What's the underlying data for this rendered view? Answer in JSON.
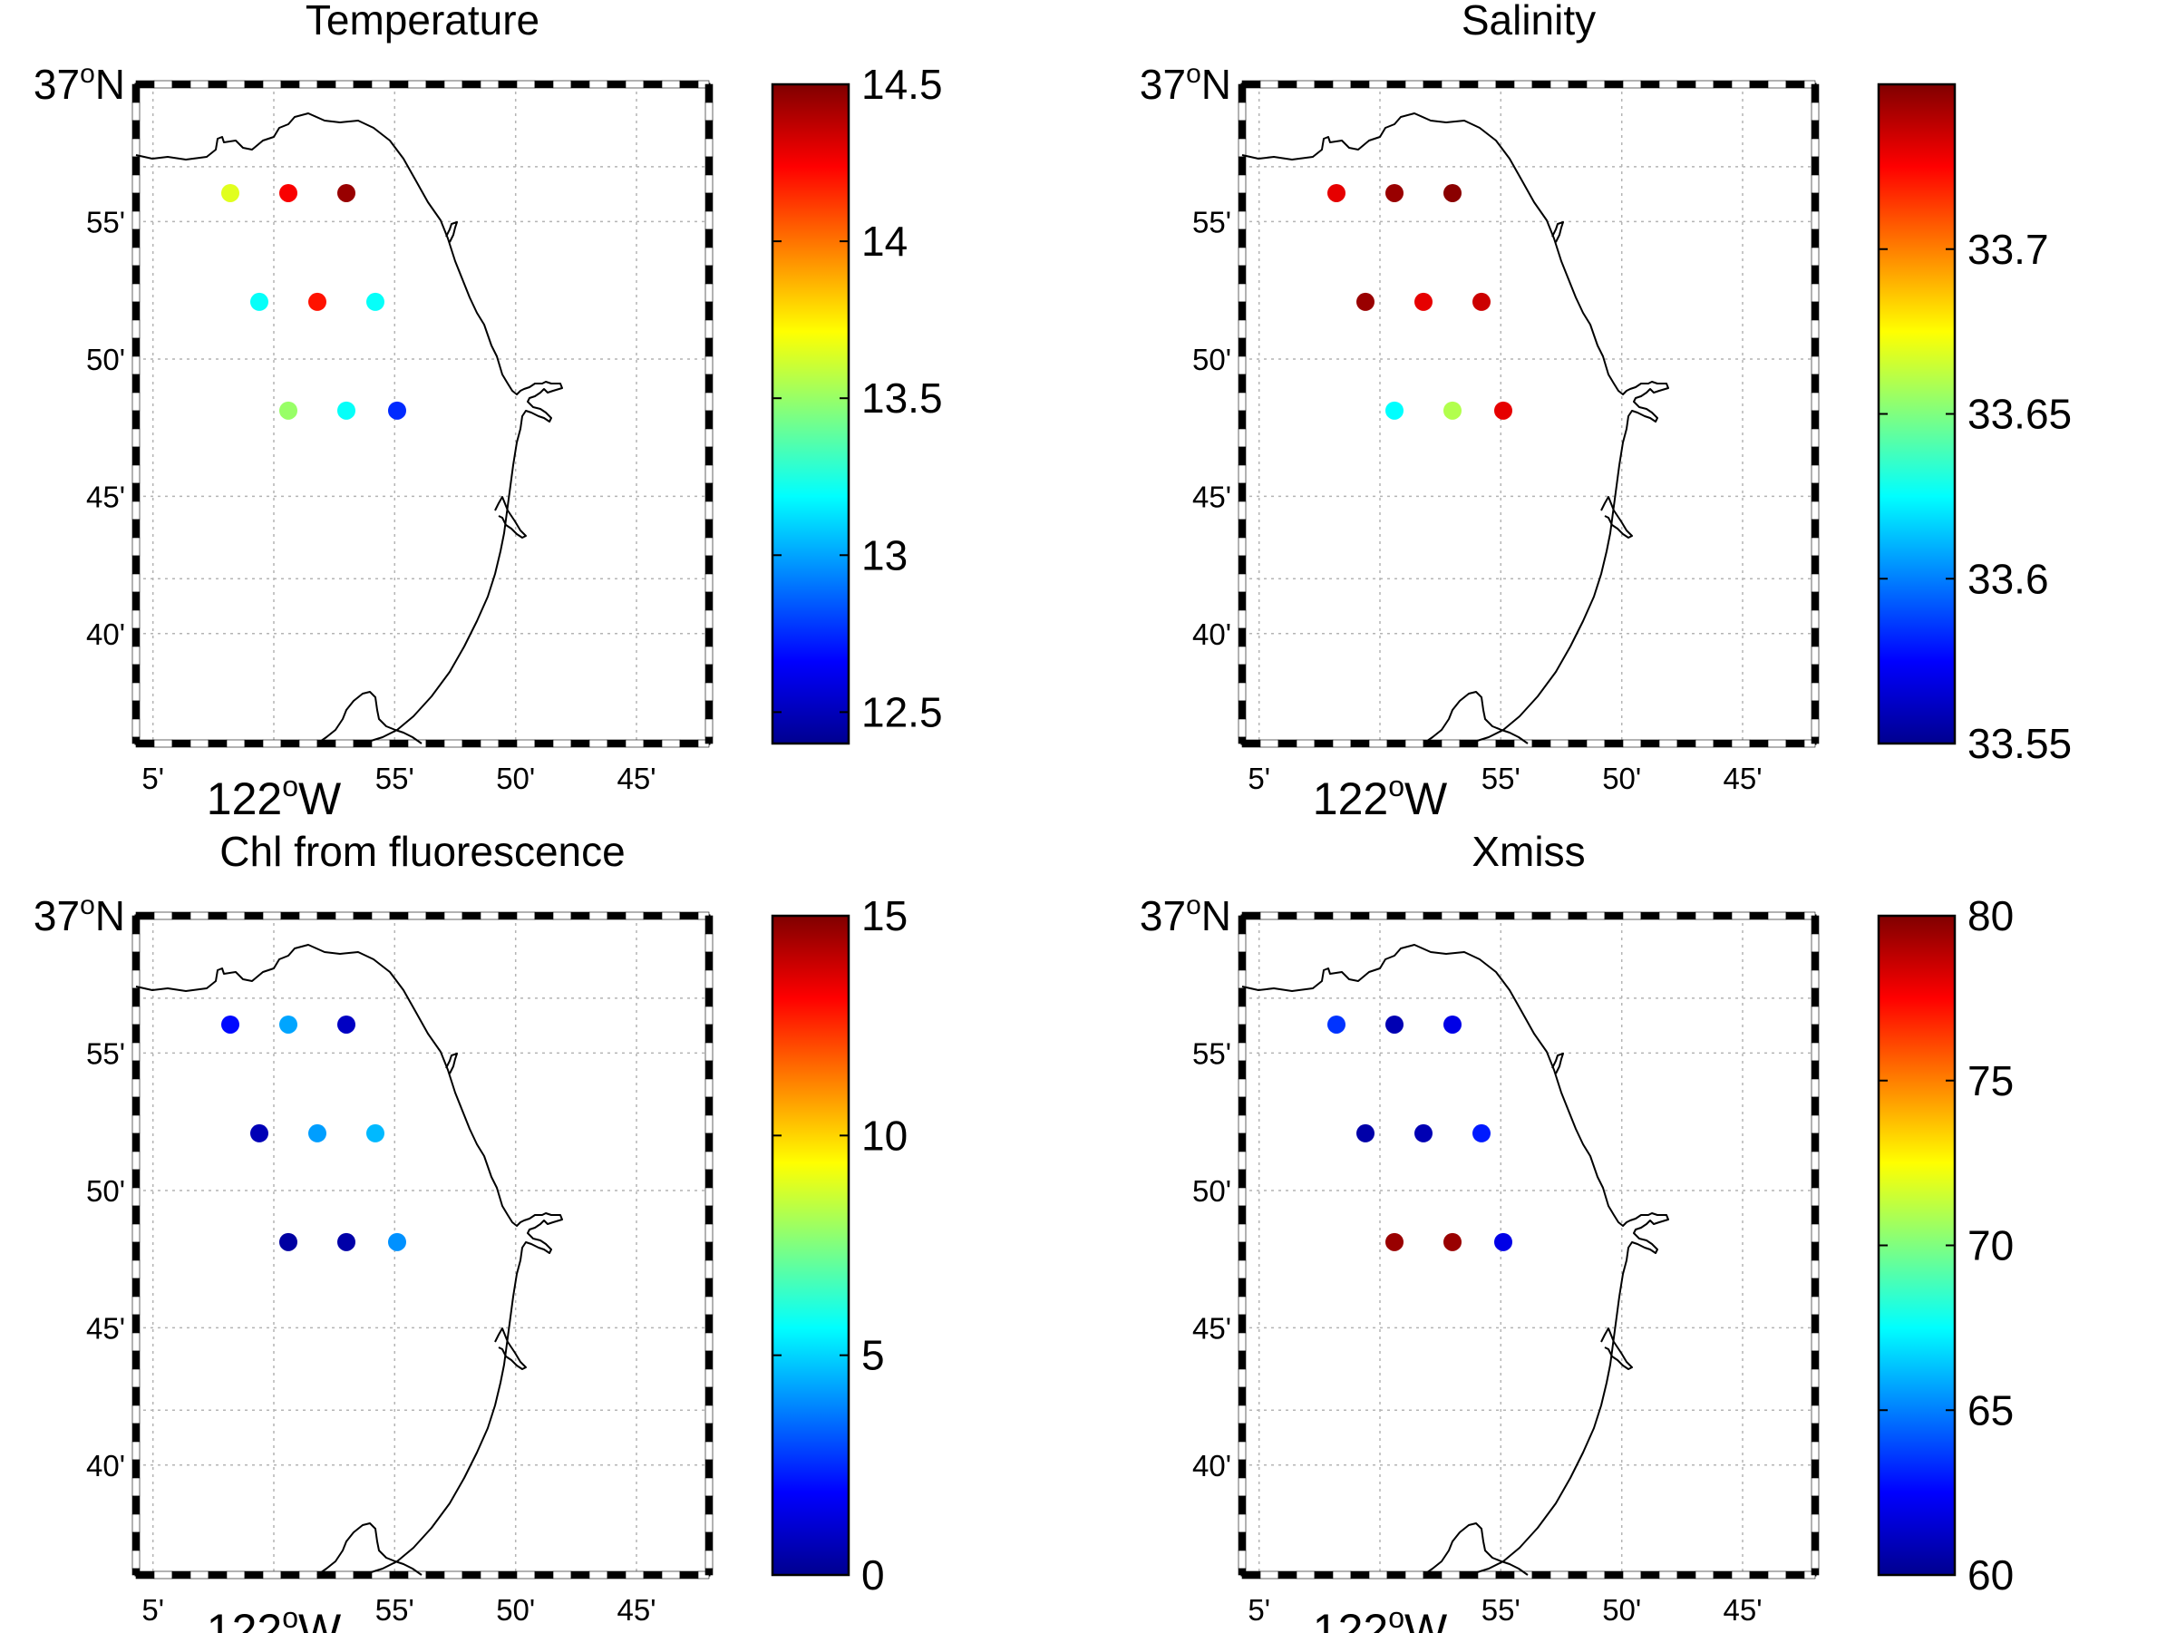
{
  "lat_major_label": "37°N",
  "lat_major_label_parts": {
    "num": "37",
    "sup": "o",
    "hemi": "N"
  },
  "lon_major_label_parts": {
    "num": "122",
    "sup": "o",
    "hemi": "W"
  },
  "lat_ticks": [
    "55'",
    "50'",
    "45'",
    "40'"
  ],
  "lon_ticks": [
    "5'",
    "55'",
    "50'",
    "45'"
  ],
  "panels": [
    {
      "title": "Temperature",
      "colorbar": {
        "range": [
          12.4,
          14.5
        ],
        "ticks": [
          "12.5",
          "13",
          "13.5",
          "14",
          "14.5"
        ],
        "tick_values": [
          12.5,
          13.0,
          13.5,
          14.0,
          14.5
        ]
      },
      "stations": [
        {
          "lon": -122.03,
          "lat": 36.934,
          "value": 13.65
        },
        {
          "lon": -121.99,
          "lat": 36.934,
          "value": 14.25
        },
        {
          "lon": -121.95,
          "lat": 36.934,
          "value": 14.45
        },
        {
          "lon": -122.01,
          "lat": 36.868,
          "value": 13.2
        },
        {
          "lon": -121.97,
          "lat": 36.868,
          "value": 14.2
        },
        {
          "lon": -121.93,
          "lat": 36.868,
          "value": 13.2
        },
        {
          "lon": -121.99,
          "lat": 36.802,
          "value": 13.5
        },
        {
          "lon": -121.95,
          "lat": 36.802,
          "value": 13.2
        },
        {
          "lon": -121.915,
          "lat": 36.802,
          "value": 12.75
        }
      ]
    },
    {
      "title": "Salinity",
      "colorbar": {
        "range": [
          33.55,
          33.75
        ],
        "ticks": [
          "33.55",
          "33.6",
          "33.65",
          "33.7"
        ],
        "tick_values": [
          33.55,
          33.6,
          33.65,
          33.7
        ]
      },
      "stations": [
        {
          "lon": -122.03,
          "lat": 36.934,
          "value": 33.73
        },
        {
          "lon": -121.99,
          "lat": 36.934,
          "value": 33.745
        },
        {
          "lon": -121.95,
          "lat": 36.934,
          "value": 33.748
        },
        {
          "lon": -122.01,
          "lat": 36.868,
          "value": 33.745
        },
        {
          "lon": -121.97,
          "lat": 36.868,
          "value": 33.73
        },
        {
          "lon": -121.93,
          "lat": 36.868,
          "value": 33.735
        },
        {
          "lon": -121.99,
          "lat": 36.802,
          "value": 33.625
        },
        {
          "lon": -121.95,
          "lat": 36.802,
          "value": 33.66
        },
        {
          "lon": -121.915,
          "lat": 36.802,
          "value": 33.73
        }
      ]
    },
    {
      "title": "Chl from fluorescence",
      "colorbar": {
        "range": [
          0,
          15
        ],
        "ticks": [
          "0",
          "5",
          "10",
          "15"
        ],
        "tick_values": [
          0,
          5,
          10,
          15
        ]
      },
      "stations": [
        {
          "lon": -122.03,
          "lat": 36.934,
          "value": 2.0
        },
        {
          "lon": -121.99,
          "lat": 36.934,
          "value": 4.3
        },
        {
          "lon": -121.95,
          "lat": 36.934,
          "value": 1.0
        },
        {
          "lon": -122.01,
          "lat": 36.868,
          "value": 0.8
        },
        {
          "lon": -121.97,
          "lat": 36.868,
          "value": 4.2
        },
        {
          "lon": -121.93,
          "lat": 36.868,
          "value": 4.6
        },
        {
          "lon": -121.99,
          "lat": 36.802,
          "value": 0.5
        },
        {
          "lon": -121.95,
          "lat": 36.802,
          "value": 0.6
        },
        {
          "lon": -121.915,
          "lat": 36.802,
          "value": 4.0
        }
      ]
    },
    {
      "title": "Xmiss",
      "colorbar": {
        "range": [
          60,
          80
        ],
        "ticks": [
          "60",
          "65",
          "70",
          "75",
          "80"
        ],
        "tick_values": [
          60,
          65,
          70,
          75,
          80
        ]
      },
      "stations": [
        {
          "lon": -122.03,
          "lat": 36.934,
          "value": 63.5
        },
        {
          "lon": -121.99,
          "lat": 36.934,
          "value": 61.0
        },
        {
          "lon": -121.95,
          "lat": 36.934,
          "value": 62.0
        },
        {
          "lon": -122.01,
          "lat": 36.868,
          "value": 60.8
        },
        {
          "lon": -121.97,
          "lat": 36.868,
          "value": 61.0
        },
        {
          "lon": -121.93,
          "lat": 36.868,
          "value": 63.0
        },
        {
          "lon": -121.99,
          "lat": 36.802,
          "value": 79.5
        },
        {
          "lon": -121.95,
          "lat": 36.802,
          "value": 79.5
        },
        {
          "lon": -121.915,
          "lat": 36.802,
          "value": 62.0
        }
      ]
    }
  ],
  "colormap": "jet",
  "grid": true,
  "colors": {
    "station_outline": "none",
    "coastline": "#000000",
    "grid": "#b4b4b4"
  },
  "icons": {
    "station": "filled-circle-marker",
    "coastline": "coastline-path"
  }
}
